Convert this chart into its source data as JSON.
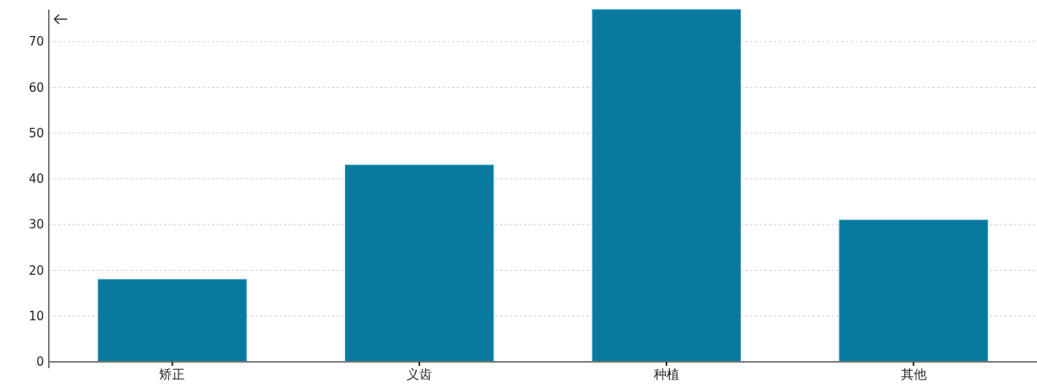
{
  "chart_data": {
    "type": "bar",
    "categories": [
      "矫正",
      "义齿",
      "种植",
      "其他"
    ],
    "values": [
      18,
      43,
      77,
      31
    ],
    "color": "#077a9e",
    "ylim": [
      0,
      77
    ],
    "yticks": [
      0,
      10,
      20,
      30,
      40,
      50,
      60,
      70
    ],
    "grid": "y"
  }
}
